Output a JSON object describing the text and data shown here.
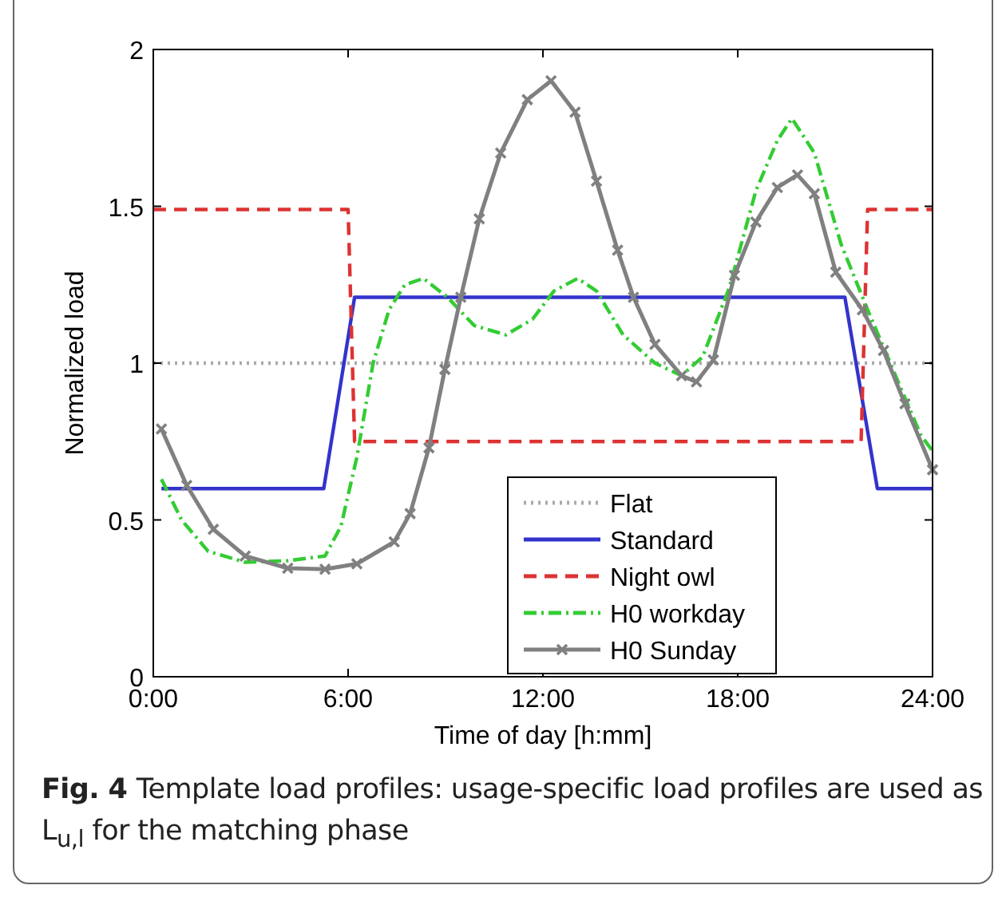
{
  "chart_data": {
    "type": "line",
    "xlabel": "Time of day [h:mm]",
    "ylabel": "Normalized load",
    "xlim": [
      0,
      24
    ],
    "xticks": [
      {
        "value": 0,
        "label": "0:00"
      },
      {
        "value": 6,
        "label": "6:00"
      },
      {
        "value": 12,
        "label": "12:00"
      },
      {
        "value": 18,
        "label": "18:00"
      },
      {
        "value": 24,
        "label": "24:00"
      }
    ],
    "ylim": [
      0,
      2
    ],
    "yticks": [
      0,
      0.5,
      1,
      1.5,
      2
    ],
    "grid": false,
    "legend": "bottom right",
    "series": [
      {
        "name": "Flat",
        "color": "#aaaaaa",
        "line_style": "dotted",
        "marker": "none",
        "x": [
          0,
          24
        ],
        "values": [
          1,
          1
        ]
      },
      {
        "name": "Standard",
        "color": "#3333cc",
        "line_style": "solid",
        "marker": "none",
        "x": [
          0.25,
          5.25,
          6.2,
          21.3,
          22.3,
          24
        ],
        "values": [
          0.6,
          0.6,
          1.21,
          1.21,
          0.6,
          0.6
        ]
      },
      {
        "name": "Night owl",
        "color": "#dd3333",
        "line_style": "dashed",
        "marker": "none",
        "x": [
          0,
          6,
          6.2,
          21.8,
          22,
          24
        ],
        "values": [
          1.49,
          1.49,
          0.75,
          0.75,
          1.49,
          1.49
        ]
      },
      {
        "name": "H0 workday",
        "color": "#33cc33",
        "line_style": "dashdot",
        "marker": "none",
        "x": [
          0.25,
          0.87,
          1.69,
          2.83,
          4.14,
          5.29,
          5.78,
          6.27,
          6.77,
          7.26,
          7.75,
          8.32,
          9.06,
          9.88,
          10.86,
          11.68,
          12.34,
          13.07,
          13.65,
          14.47,
          15.45,
          16.27,
          16.92,
          17.74,
          18.56,
          19.22,
          19.67,
          20.36,
          21.18,
          22,
          22.82,
          23.64,
          24
        ],
        "values": [
          0.63,
          0.5,
          0.4,
          0.365,
          0.37,
          0.385,
          0.48,
          0.7,
          1.0,
          1.17,
          1.25,
          1.27,
          1.21,
          1.12,
          1.09,
          1.14,
          1.23,
          1.27,
          1.23,
          1.09,
          1.0,
          0.96,
          1.02,
          1.24,
          1.55,
          1.71,
          1.78,
          1.67,
          1.38,
          1.17,
          0.97,
          0.77,
          0.72
        ]
      },
      {
        "name": "H0 Sunday",
        "color": "#808080",
        "line_style": "solid",
        "marker": "cross",
        "x": [
          0.25,
          1.03,
          1.85,
          2.83,
          4.14,
          5.29,
          6.27,
          7.42,
          7.91,
          8.49,
          8.98,
          9.47,
          10.04,
          10.7,
          11.52,
          12.25,
          12.99,
          13.65,
          14.3,
          14.79,
          15.45,
          16.27,
          16.73,
          17.25,
          17.9,
          18.56,
          19.22,
          19.84,
          20.36,
          21.02,
          21.84,
          22.49,
          23.15,
          24
        ],
        "values": [
          0.79,
          0.61,
          0.47,
          0.385,
          0.346,
          0.343,
          0.36,
          0.43,
          0.52,
          0.73,
          0.98,
          1.21,
          1.46,
          1.67,
          1.84,
          1.9,
          1.8,
          1.58,
          1.36,
          1.21,
          1.06,
          0.96,
          0.94,
          1.01,
          1.28,
          1.45,
          1.56,
          1.6,
          1.54,
          1.29,
          1.17,
          1.04,
          0.87,
          0.66
        ]
      }
    ],
    "annotations": [
      "Fig. 4",
      "Template load profiles: usage-specific load profiles are used as L$_{u,l}$ for the matching phase"
    ]
  }
}
